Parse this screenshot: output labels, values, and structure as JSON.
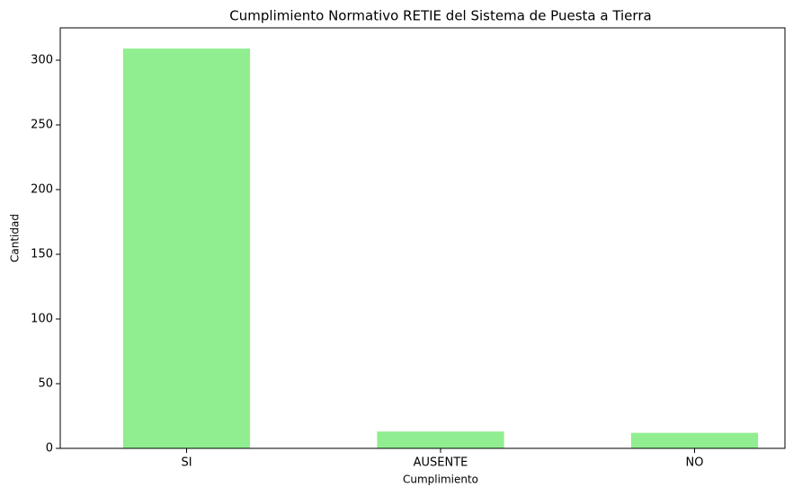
{
  "chart_data": {
    "type": "bar",
    "title": "Cumplimiento Normativo RETIE del Sistema de Puesta a Tierra",
    "x_label": "Cumplimiento",
    "y_label": "Cantidad",
    "categories": [
      "SI",
      "AUSENTE",
      "NO"
    ],
    "values": [
      309,
      13,
      12
    ],
    "color": "#90ee90",
    "ylim": [
      0,
      325
    ],
    "yticks": [
      0,
      50,
      100,
      150,
      200,
      250,
      300
    ],
    "grid": false
  }
}
